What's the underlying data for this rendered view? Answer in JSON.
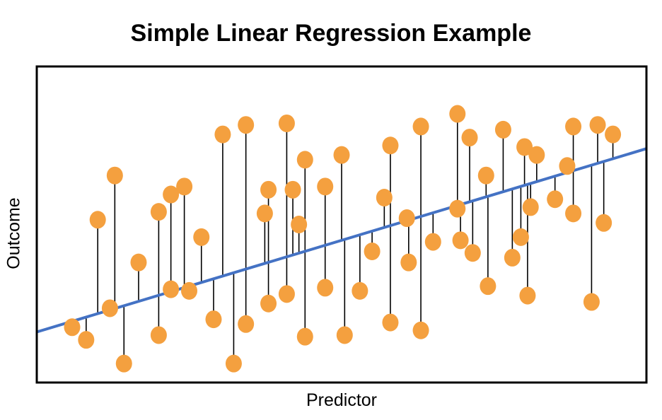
{
  "chart_data": {
    "type": "scatter",
    "title": "Simple Linear Regression Example",
    "xlabel": "Predictor",
    "ylabel": "Outcome",
    "xlim": [
      0,
      100
    ],
    "ylim": [
      0,
      100
    ],
    "grid": false,
    "ticks": false,
    "colors": {
      "points": "#F4A03F",
      "regression_line": "#4472C4",
      "residuals": "#000000",
      "frame": "#000000"
    },
    "regression_line": {
      "x": [
        0,
        100
      ],
      "y": [
        16,
        74
      ]
    },
    "points": [
      {
        "x": 5.8,
        "y": 17.5
      },
      {
        "x": 8.1,
        "y": 13.5
      },
      {
        "x": 10.0,
        "y": 51.5
      },
      {
        "x": 12.0,
        "y": 23.5
      },
      {
        "x": 12.8,
        "y": 65.5
      },
      {
        "x": 14.3,
        "y": 6.0
      },
      {
        "x": 16.7,
        "y": 38.0
      },
      {
        "x": 20.0,
        "y": 15.0
      },
      {
        "x": 20.0,
        "y": 54.0
      },
      {
        "x": 22.0,
        "y": 59.5
      },
      {
        "x": 22.0,
        "y": 29.5
      },
      {
        "x": 24.2,
        "y": 62.0
      },
      {
        "x": 25.0,
        "y": 29.0
      },
      {
        "x": 27.0,
        "y": 46.0
      },
      {
        "x": 29.0,
        "y": 20.0
      },
      {
        "x": 30.5,
        "y": 78.5
      },
      {
        "x": 32.3,
        "y": 6.0
      },
      {
        "x": 34.3,
        "y": 81.5
      },
      {
        "x": 34.3,
        "y": 18.5
      },
      {
        "x": 37.4,
        "y": 53.5
      },
      {
        "x": 38.0,
        "y": 25.0
      },
      {
        "x": 38.0,
        "y": 61.0
      },
      {
        "x": 41.0,
        "y": 82.0
      },
      {
        "x": 41.0,
        "y": 28.0
      },
      {
        "x": 42.0,
        "y": 61.0
      },
      {
        "x": 43.0,
        "y": 50.0
      },
      {
        "x": 44.0,
        "y": 70.5
      },
      {
        "x": 44.0,
        "y": 14.5
      },
      {
        "x": 47.3,
        "y": 62.0
      },
      {
        "x": 47.3,
        "y": 30.0
      },
      {
        "x": 50.0,
        "y": 72.0
      },
      {
        "x": 50.5,
        "y": 15.0
      },
      {
        "x": 53.0,
        "y": 29.0
      },
      {
        "x": 55.0,
        "y": 41.5
      },
      {
        "x": 57.0,
        "y": 58.5
      },
      {
        "x": 58.0,
        "y": 75.0
      },
      {
        "x": 58.0,
        "y": 19.0
      },
      {
        "x": 60.7,
        "y": 52.0
      },
      {
        "x": 61.0,
        "y": 38.0
      },
      {
        "x": 63.0,
        "y": 81.0
      },
      {
        "x": 63.0,
        "y": 16.5
      },
      {
        "x": 65.0,
        "y": 44.5
      },
      {
        "x": 69.0,
        "y": 85.0
      },
      {
        "x": 69.0,
        "y": 55.0
      },
      {
        "x": 69.5,
        "y": 45.0
      },
      {
        "x": 71.0,
        "y": 77.5
      },
      {
        "x": 71.5,
        "y": 41.0
      },
      {
        "x": 73.7,
        "y": 65.5
      },
      {
        "x": 74.0,
        "y": 30.5
      },
      {
        "x": 76.5,
        "y": 80.0
      },
      {
        "x": 78.0,
        "y": 39.5
      },
      {
        "x": 79.4,
        "y": 46.0
      },
      {
        "x": 80.0,
        "y": 74.5
      },
      {
        "x": 80.5,
        "y": 27.5
      },
      {
        "x": 81.0,
        "y": 55.5
      },
      {
        "x": 82.0,
        "y": 72.0
      },
      {
        "x": 85.0,
        "y": 58.0
      },
      {
        "x": 87.0,
        "y": 68.5
      },
      {
        "x": 88.0,
        "y": 81.0
      },
      {
        "x": 88.0,
        "y": 53.5
      },
      {
        "x": 91.0,
        "y": 25.5
      },
      {
        "x": 92.0,
        "y": 81.5
      },
      {
        "x": 93.0,
        "y": 50.5
      },
      {
        "x": 94.5,
        "y": 78.5
      }
    ]
  }
}
